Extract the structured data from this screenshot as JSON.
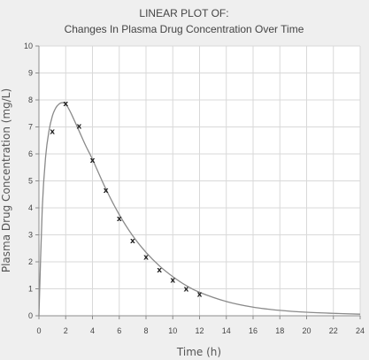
{
  "chart_data": {
    "type": "scatter",
    "title_line1": "LINEAR PLOT OF:",
    "title_line2": "Changes In Plasma Drug Concentration Over Time",
    "xlabel": "Time  (h)",
    "ylabel": "Plasma Drug Concentration  (mg/L)",
    "xlim": [
      0,
      24
    ],
    "ylim": [
      0,
      10
    ],
    "x_ticks": [
      0,
      2,
      4,
      6,
      8,
      10,
      12,
      14,
      16,
      18,
      20,
      22,
      24
    ],
    "y_ticks": [
      0,
      1,
      2,
      3,
      4,
      5,
      6,
      7,
      8,
      9,
      10
    ],
    "grid": true,
    "legend": "none",
    "marker_symbol": "x",
    "series": [
      {
        "kind": "observed",
        "x": [
          1,
          2,
          3,
          4,
          5,
          6,
          7,
          8,
          9,
          10,
          11,
          12
        ],
        "y": [
          6.85,
          7.88,
          7.05,
          5.78,
          4.68,
          3.62,
          2.8,
          2.2,
          1.72,
          1.35,
          1.02,
          0.82
        ]
      },
      {
        "kind": "fitted-curve",
        "x": [
          0,
          0.25,
          0.5,
          0.75,
          1,
          1.25,
          1.5,
          1.75,
          2,
          2.25,
          2.5,
          3,
          3.5,
          4,
          5,
          6,
          7,
          8,
          9,
          10,
          11,
          12,
          14,
          16,
          18,
          20,
          22,
          24
        ],
        "y": [
          0,
          4.0,
          5.9,
          6.85,
          7.4,
          7.7,
          7.85,
          7.9,
          7.85,
          7.65,
          7.4,
          6.85,
          6.3,
          5.8,
          4.7,
          3.75,
          2.97,
          2.35,
          1.85,
          1.45,
          1.12,
          0.87,
          0.53,
          0.32,
          0.2,
          0.13,
          0.09,
          0.06
        ]
      }
    ],
    "colors": {
      "background": "#efefef",
      "plot_background": "#ffffff",
      "grid": "#d9d9d9",
      "axis": "#8c8c8c",
      "curve": "#8a8a8a",
      "marker": "#222222",
      "text": "#444444"
    }
  }
}
